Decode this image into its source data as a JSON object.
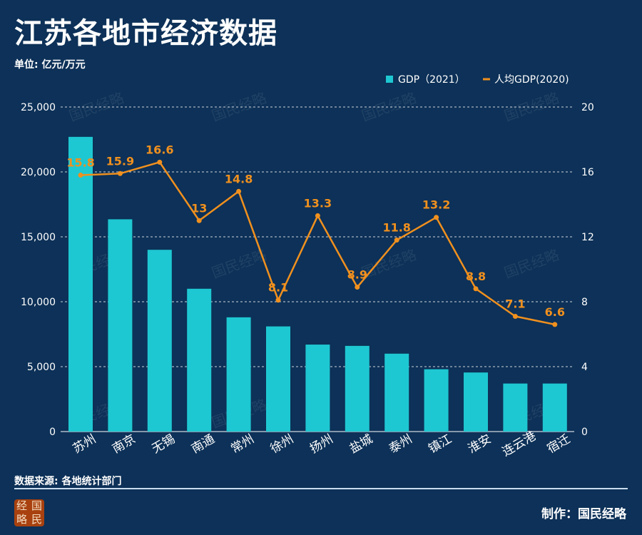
{
  "title": "江苏各地市经济数据",
  "unit_label": "单位: 亿元/万元",
  "source": "数据来源: 各地统计部门",
  "maker": "制作：国民经略",
  "logo_text": [
    "经",
    "国",
    "略",
    "民"
  ],
  "watermark": "国民经略",
  "colors": {
    "background": "#0d3158",
    "bar": "#1ec8d2",
    "line": "#f0901e",
    "label": "#f0901e"
  },
  "chart_data": {
    "type": "bar+line",
    "categories": [
      "苏州",
      "南京",
      "无锡",
      "南通",
      "常州",
      "徐州",
      "扬州",
      "盐城",
      "泰州",
      "镇江",
      "淮安",
      "连云港",
      "宿迁"
    ],
    "series": [
      {
        "name": "GDP（2021）",
        "type": "bar",
        "axis": "left",
        "values": [
          22700,
          16350,
          14000,
          11000,
          8800,
          8100,
          6700,
          6600,
          6000,
          4800,
          4550,
          3700,
          3700
        ]
      },
      {
        "name": "人均GDP(2020)",
        "type": "line",
        "axis": "right",
        "values": [
          15.8,
          15.9,
          16.6,
          13,
          14.8,
          8.1,
          13.3,
          8.9,
          11.8,
          13.2,
          8.8,
          7.1,
          6.6
        ],
        "labels": [
          "15.8",
          "15.9",
          "16.6",
          "13",
          "14.8",
          "8.1",
          "13.3",
          "8.9",
          "11.8",
          "13.2",
          "8.8",
          "7.1",
          "6.6"
        ]
      }
    ],
    "y_left": {
      "range": [
        0,
        25000
      ],
      "ticks": [
        "0",
        "5,000",
        "10,000",
        "15,000",
        "20,000",
        "25,000"
      ]
    },
    "y_right": {
      "range": [
        0,
        20
      ],
      "ticks": [
        "0",
        "4",
        "8",
        "12",
        "16",
        "20"
      ]
    },
    "grid": "horizontal dashed",
    "legend": "top-right"
  }
}
